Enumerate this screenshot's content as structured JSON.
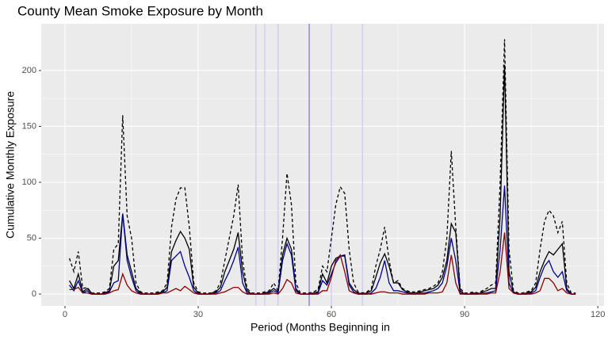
{
  "chart_data": {
    "type": "line",
    "title": "County Mean Smoke Exposure by Month",
    "xlabel": "Period (Months Beginning in",
    "ylabel": "Cumulative Monthly Exposure",
    "x": [
      1,
      2,
      3,
      4,
      5,
      6,
      7,
      8,
      9,
      10,
      11,
      12,
      13,
      14,
      15,
      16,
      17,
      18,
      19,
      20,
      21,
      22,
      23,
      24,
      25,
      26,
      27,
      28,
      29,
      30,
      31,
      32,
      33,
      34,
      35,
      36,
      37,
      38,
      39,
      40,
      41,
      42,
      43,
      44,
      45,
      46,
      47,
      48,
      49,
      50,
      51,
      52,
      53,
      54,
      55,
      56,
      57,
      58,
      59,
      60,
      61,
      62,
      63,
      64,
      65,
      66,
      67,
      68,
      69,
      70,
      71,
      72,
      73,
      74,
      75,
      76,
      77,
      78,
      79,
      80,
      81,
      82,
      83,
      84,
      85,
      86,
      87,
      88,
      89,
      90,
      91,
      92,
      93,
      94,
      95,
      96,
      97,
      98,
      99,
      100,
      101,
      102,
      103,
      104,
      105,
      106,
      107,
      108,
      109,
      110,
      111,
      112,
      113,
      114,
      115
    ],
    "series": [
      {
        "color": "#000000",
        "dashed": true,
        "values": [
          32,
          20,
          38,
          5,
          6,
          1,
          1,
          1,
          2,
          5,
          40,
          45,
          160,
          70,
          50,
          10,
          2,
          1,
          1,
          1,
          2,
          3,
          10,
          60,
          85,
          95,
          95,
          60,
          10,
          2,
          1,
          1,
          1,
          3,
          10,
          30,
          50,
          70,
          98,
          30,
          5,
          1,
          1,
          1,
          2,
          3,
          10,
          3,
          50,
          108,
          80,
          10,
          1,
          1,
          1,
          2,
          4,
          25,
          20,
          50,
          80,
          96,
          90,
          40,
          10,
          2,
          1,
          2,
          5,
          25,
          40,
          60,
          30,
          10,
          12,
          5,
          3,
          2,
          2,
          3,
          4,
          5,
          7,
          10,
          20,
          50,
          128,
          60,
          5,
          1,
          1,
          2,
          1,
          3,
          5,
          8,
          10,
          100,
          228,
          40,
          3,
          1,
          1,
          2,
          3,
          10,
          40,
          65,
          75,
          70,
          55,
          65,
          10,
          1,
          1
        ]
      },
      {
        "color": "#000000",
        "dashed": false,
        "values": [
          12,
          5,
          18,
          2,
          5,
          1,
          0,
          0,
          1,
          3,
          25,
          30,
          72,
          35,
          20,
          5,
          1,
          0,
          0,
          0,
          1,
          2,
          6,
          38,
          48,
          56,
          50,
          40,
          6,
          1,
          0,
          0,
          1,
          2,
          6,
          20,
          30,
          40,
          55,
          20,
          3,
          0,
          0,
          0,
          1,
          2,
          5,
          2,
          35,
          50,
          40,
          5,
          0,
          0,
          0,
          1,
          2,
          18,
          10,
          25,
          32,
          34,
          35,
          10,
          4,
          1,
          0,
          1,
          3,
          15,
          28,
          36,
          25,
          10,
          10,
          4,
          2,
          1,
          1,
          2,
          3,
          4,
          5,
          8,
          15,
          30,
          63,
          55,
          3,
          0,
          0,
          1,
          0,
          2,
          3,
          5,
          5,
          70,
          205,
          20,
          2,
          0,
          0,
          1,
          2,
          6,
          20,
          30,
          38,
          35,
          40,
          45,
          5,
          0,
          0
        ]
      },
      {
        "color": "#00008b",
        "dashed": false,
        "values": [
          8,
          3,
          12,
          1,
          3,
          0,
          0,
          0,
          0,
          2,
          10,
          12,
          72,
          30,
          15,
          3,
          0,
          0,
          0,
          0,
          0,
          1,
          3,
          30,
          34,
          38,
          25,
          15,
          3,
          0,
          0,
          0,
          0,
          1,
          3,
          12,
          20,
          30,
          42,
          10,
          1,
          0,
          0,
          0,
          0,
          1,
          3,
          1,
          30,
          45,
          35,
          3,
          0,
          0,
          0,
          0,
          1,
          12,
          8,
          18,
          28,
          34,
          34,
          8,
          2,
          0,
          0,
          0,
          1,
          5,
          15,
          30,
          10,
          3,
          3,
          2,
          1,
          0,
          0,
          1,
          1,
          2,
          3,
          5,
          10,
          25,
          50,
          30,
          1,
          0,
          0,
          0,
          0,
          1,
          1,
          2,
          3,
          40,
          97,
          10,
          1,
          0,
          0,
          0,
          1,
          3,
          15,
          25,
          30,
          20,
          15,
          20,
          3,
          0,
          0
        ]
      },
      {
        "color": "#8b0000",
        "dashed": false,
        "values": [
          4,
          4,
          6,
          1,
          1,
          0,
          0,
          0,
          0,
          1,
          3,
          4,
          18,
          8,
          3,
          1,
          0,
          0,
          0,
          0,
          0,
          1,
          1,
          3,
          5,
          3,
          7,
          4,
          1,
          0,
          0,
          0,
          0,
          0,
          1,
          2,
          4,
          6,
          6,
          2,
          0,
          0,
          0,
          0,
          0,
          0,
          1,
          0,
          5,
          13,
          10,
          1,
          0,
          0,
          0,
          0,
          0,
          3,
          3,
          15,
          30,
          35,
          20,
          3,
          1,
          0,
          0,
          0,
          0,
          1,
          2,
          2,
          1,
          1,
          1,
          0,
          0,
          0,
          0,
          0,
          0,
          1,
          1,
          1,
          2,
          10,
          35,
          10,
          0,
          0,
          0,
          0,
          0,
          0,
          0,
          1,
          1,
          20,
          55,
          5,
          1,
          0,
          0,
          0,
          0,
          1,
          3,
          14,
          14,
          10,
          3,
          5,
          1,
          0,
          0
        ]
      }
    ],
    "vlines": [
      43,
      45,
      48,
      60,
      67
    ],
    "vline_color": "#c8c8f0",
    "highlight_vlines": [
      55
    ],
    "highlight_color": "#7070ee",
    "xlim": [
      -5.35,
      121.4
    ],
    "xticks": [
      0,
      30,
      60,
      90,
      120
    ],
    "ylim": [
      -10.6,
      241.8
    ],
    "yticks": [
      0,
      50,
      100,
      150,
      200
    ],
    "grid": true,
    "minor_grid": true
  }
}
